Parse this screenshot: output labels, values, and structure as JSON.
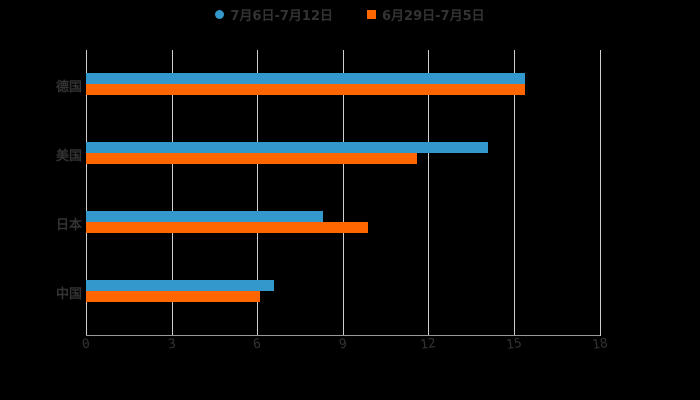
{
  "chart_data": {
    "type": "bar",
    "orientation": "horizontal",
    "title": "",
    "xlabel": "",
    "ylabel": "",
    "categories": [
      "德国",
      "美国",
      "日本",
      "中国"
    ],
    "series": [
      {
        "name": "7月6日-7月12日",
        "color": "#3398cc",
        "marker": "circle",
        "values": [
          15.4,
          14.1,
          8.3,
          6.6
        ]
      },
      {
        "name": "6月29日-7月5日",
        "color": "#ff6600",
        "marker": "square",
        "values": [
          15.4,
          11.6,
          9.9,
          6.1
        ]
      }
    ],
    "xlim": [
      0,
      18
    ],
    "xticks": [
      "0",
      "3",
      "6",
      "9",
      "12",
      "15",
      "18"
    ],
    "grid": true,
    "legend_position": "top"
  },
  "legend": {
    "series_1": "7月6日-7月12日",
    "series_2": "6月29日-7月5日"
  }
}
